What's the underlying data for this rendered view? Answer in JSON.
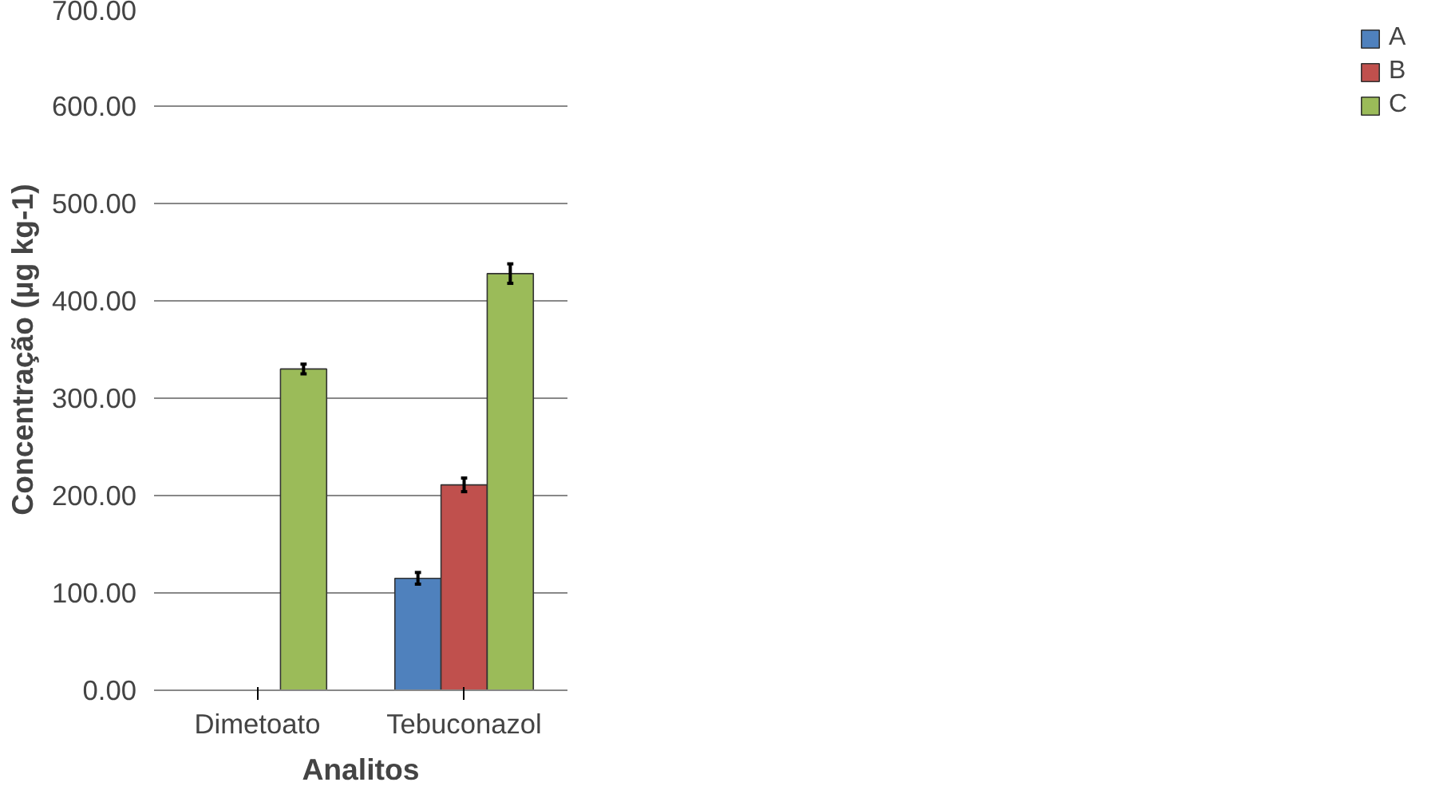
{
  "chart_data": {
    "type": "bar",
    "xlabel": "Analitos",
    "ylabel": "Concentração (µg kg-1)",
    "categories": [
      "Dimetoato",
      "Tebuconazol"
    ],
    "series": [
      {
        "name": "A",
        "color": "#4f81bd",
        "values": [
          null,
          115
        ],
        "errors": [
          null,
          6
        ]
      },
      {
        "name": "B",
        "color": "#c0504d",
        "values": [
          null,
          211
        ],
        "errors": [
          null,
          7
        ]
      },
      {
        "name": "C",
        "color": "#9bbb59",
        "values": [
          330,
          428
        ],
        "errors": [
          5,
          10
        ]
      }
    ],
    "ylim": [
      0,
      700
    ],
    "yticks": [
      {
        "value": 0,
        "label": "0.00"
      },
      {
        "value": 100,
        "label": "100.00"
      },
      {
        "value": 200,
        "label": "200.00"
      },
      {
        "value": 300,
        "label": "300.00"
      },
      {
        "value": 400,
        "label": "400.00"
      },
      {
        "value": 500,
        "label": "500.00"
      },
      {
        "value": 600,
        "label": "600.00"
      },
      {
        "value": 700,
        "label": "700.00"
      }
    ],
    "grid": "y",
    "legend": "right"
  }
}
